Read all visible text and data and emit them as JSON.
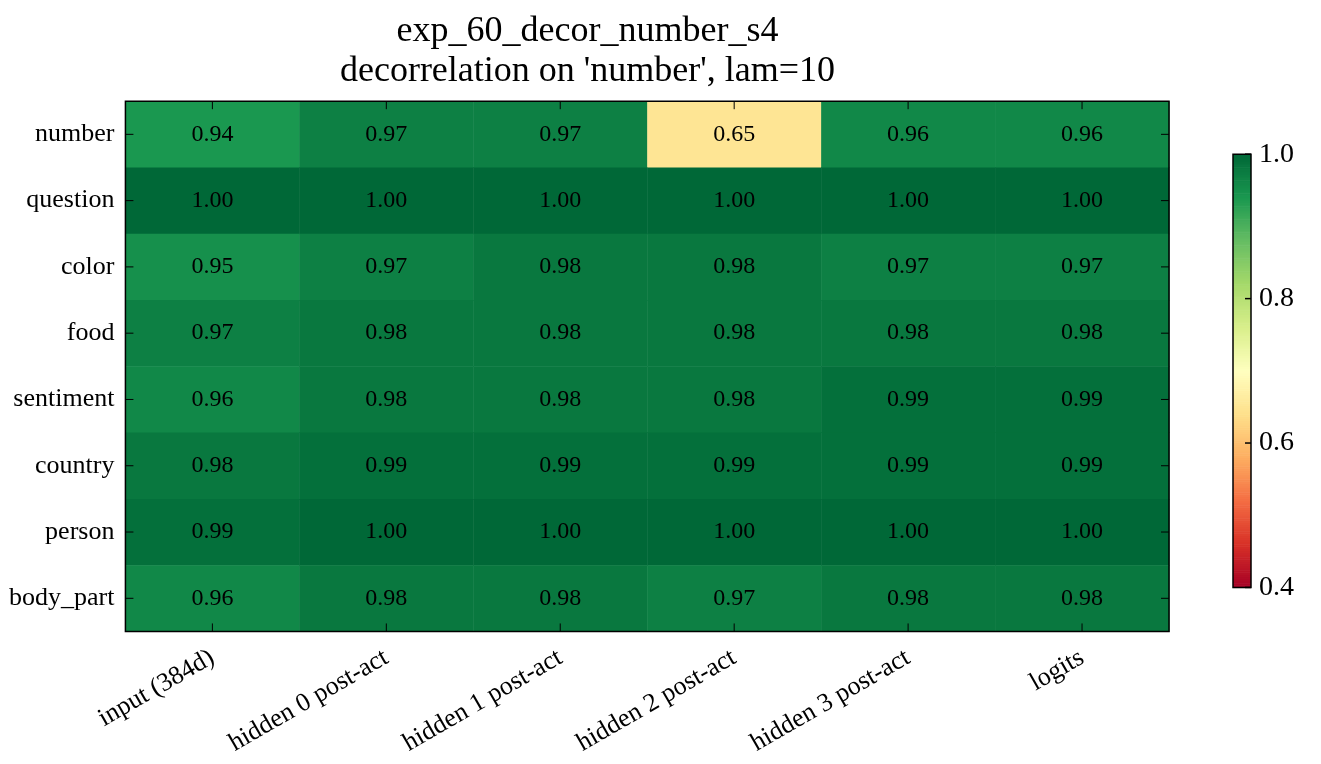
{
  "chart_data": {
    "type": "heatmap",
    "title": "exp_60_decor_number_s4\ndecorrelation on 'number', lam=10",
    "categories": [
      "input (384d)",
      "hidden 0 post-act",
      "hidden 1 post-act",
      "hidden 2 post-act",
      "hidden 3 post-act",
      "logits"
    ],
    "y_categories": [
      "number",
      "question",
      "color",
      "food",
      "sentiment",
      "country",
      "person",
      "body_part"
    ],
    "cells": [
      [
        0.94,
        0.97,
        0.97,
        0.65,
        0.96,
        0.96
      ],
      [
        1.0,
        1.0,
        1.0,
        1.0,
        1.0,
        1.0
      ],
      [
        0.95,
        0.97,
        0.98,
        0.98,
        0.97,
        0.97
      ],
      [
        0.97,
        0.98,
        0.98,
        0.98,
        0.98,
        0.98
      ],
      [
        0.96,
        0.98,
        0.98,
        0.98,
        0.99,
        0.99
      ],
      [
        0.98,
        0.99,
        0.99,
        0.99,
        0.99,
        0.99
      ],
      [
        0.99,
        1.0,
        1.0,
        1.0,
        1.0,
        1.0
      ],
      [
        0.96,
        0.98,
        0.98,
        0.97,
        0.98,
        0.98
      ]
    ],
    "cell_labels": [
      [
        "0.94",
        "0.97",
        "0.97",
        "0.65",
        "0.96",
        "0.96"
      ],
      [
        "1.00",
        "1.00",
        "1.00",
        "1.00",
        "1.00",
        "1.00"
      ],
      [
        "0.95",
        "0.97",
        "0.98",
        "0.98",
        "0.97",
        "0.97"
      ],
      [
        "0.97",
        "0.98",
        "0.98",
        "0.98",
        "0.98",
        "0.98"
      ],
      [
        "0.96",
        "0.98",
        "0.98",
        "0.98",
        "0.99",
        "0.99"
      ],
      [
        "0.98",
        "0.99",
        "0.99",
        "0.99",
        "0.99",
        "0.99"
      ],
      [
        "0.99",
        "1.00",
        "1.00",
        "1.00",
        "1.00",
        "1.00"
      ],
      [
        "0.96",
        "0.98",
        "0.98",
        "0.97",
        "0.98",
        "0.98"
      ]
    ],
    "clim": [
      0.4,
      1.0
    ],
    "cticks": [
      0.4,
      0.6,
      0.8,
      {
        "value": 1.0,
        "label": "1.0"
      }
    ]
  }
}
